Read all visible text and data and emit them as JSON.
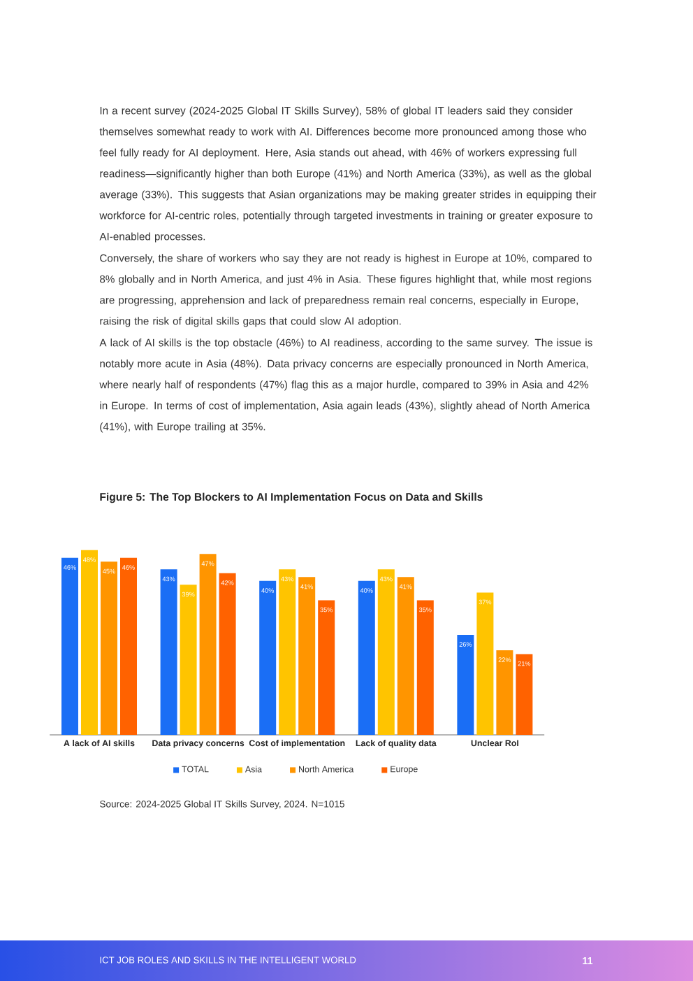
{
  "chart_data": {
    "type": "bar",
    "title": "Figure 5: The Top Blockers to AI Implementation Focus on Data and Skills",
    "categories": [
      "A lack of AI skills",
      "Data privacy concerns",
      "Cost of implementation",
      "Lack of quality data",
      "Unclear RoI"
    ],
    "series": [
      {
        "name": "TOTAL",
        "color": "#1a6ef5",
        "values": [
          46,
          43,
          40,
          40,
          26
        ],
        "value_labels": [
          "46%",
          "43%",
          "40%",
          "40%",
          "26%"
        ]
      },
      {
        "name": "Asia",
        "color": "#ffc400",
        "values": [
          48,
          39,
          43,
          43,
          37
        ],
        "value_labels": [
          "48%",
          "39%",
          "43%",
          "43%",
          "37%"
        ]
      },
      {
        "name": "North America",
        "color": "#ff9500",
        "values": [
          45,
          47,
          41,
          41,
          22
        ],
        "value_labels": [
          "45%",
          "47%",
          "41%",
          "41%",
          "22%"
        ]
      },
      {
        "name": "Europe",
        "color": "#ff6200",
        "values": [
          46,
          42,
          35,
          35,
          21
        ],
        "value_labels": [
          "46%",
          "42%",
          "35%",
          "35%",
          "21%"
        ]
      }
    ],
    "legend": "bottom",
    "annotations": [
      "In a recent survey (2024-2025 Global IT Skills Survey), 58% of global IT leaders said they consider themselves somewhat ready to work with AI. Differences become more pronounced among those who feel fully ready for AI deployment. Here, Asia stands out ahead, with 46% of workers expressing full readiness—significantly higher than both Europe (41%) and North America (33%), as well as the global average (33%). This suggests that Asian organizations may be making greater strides in equipping their workforce for AI-centric roles, potentially through targeted investments in training or greater exposure to AI-enabled processes.",
      "Conversely, the share of workers who say they are not ready is highest in Europe at 10%, compared to 8% globally and in North America, and just 4% in Asia. These figures highlight that, while most regions are progressing, apprehension and lack of preparedness remain real concerns, especially in Europe, raising the risk of digital skills gaps that could slow AI adoption.",
      "A lack of AI skills is the top obstacle (46%) to AI readiness, according to the same survey. The issue is notably more acute in Asia (48%). Data privacy concerns are especially pronounced in North America, where nearly half of respondents (47%) flag this as a major hurdle, compared to 39% in Asia and 42% in Europe. In terms of cost of implementation, Asia again leads (43%), slightly ahead of North America (41%), with Europe trailing at 35%.",
      "Source: 2024-2025 Global IT Skills Survey, 2024. N=1015",
      "ICT JOB ROLES AND SKILLS IN THE INTELLIGENT WORLD",
      "11"
    ]
  }
}
